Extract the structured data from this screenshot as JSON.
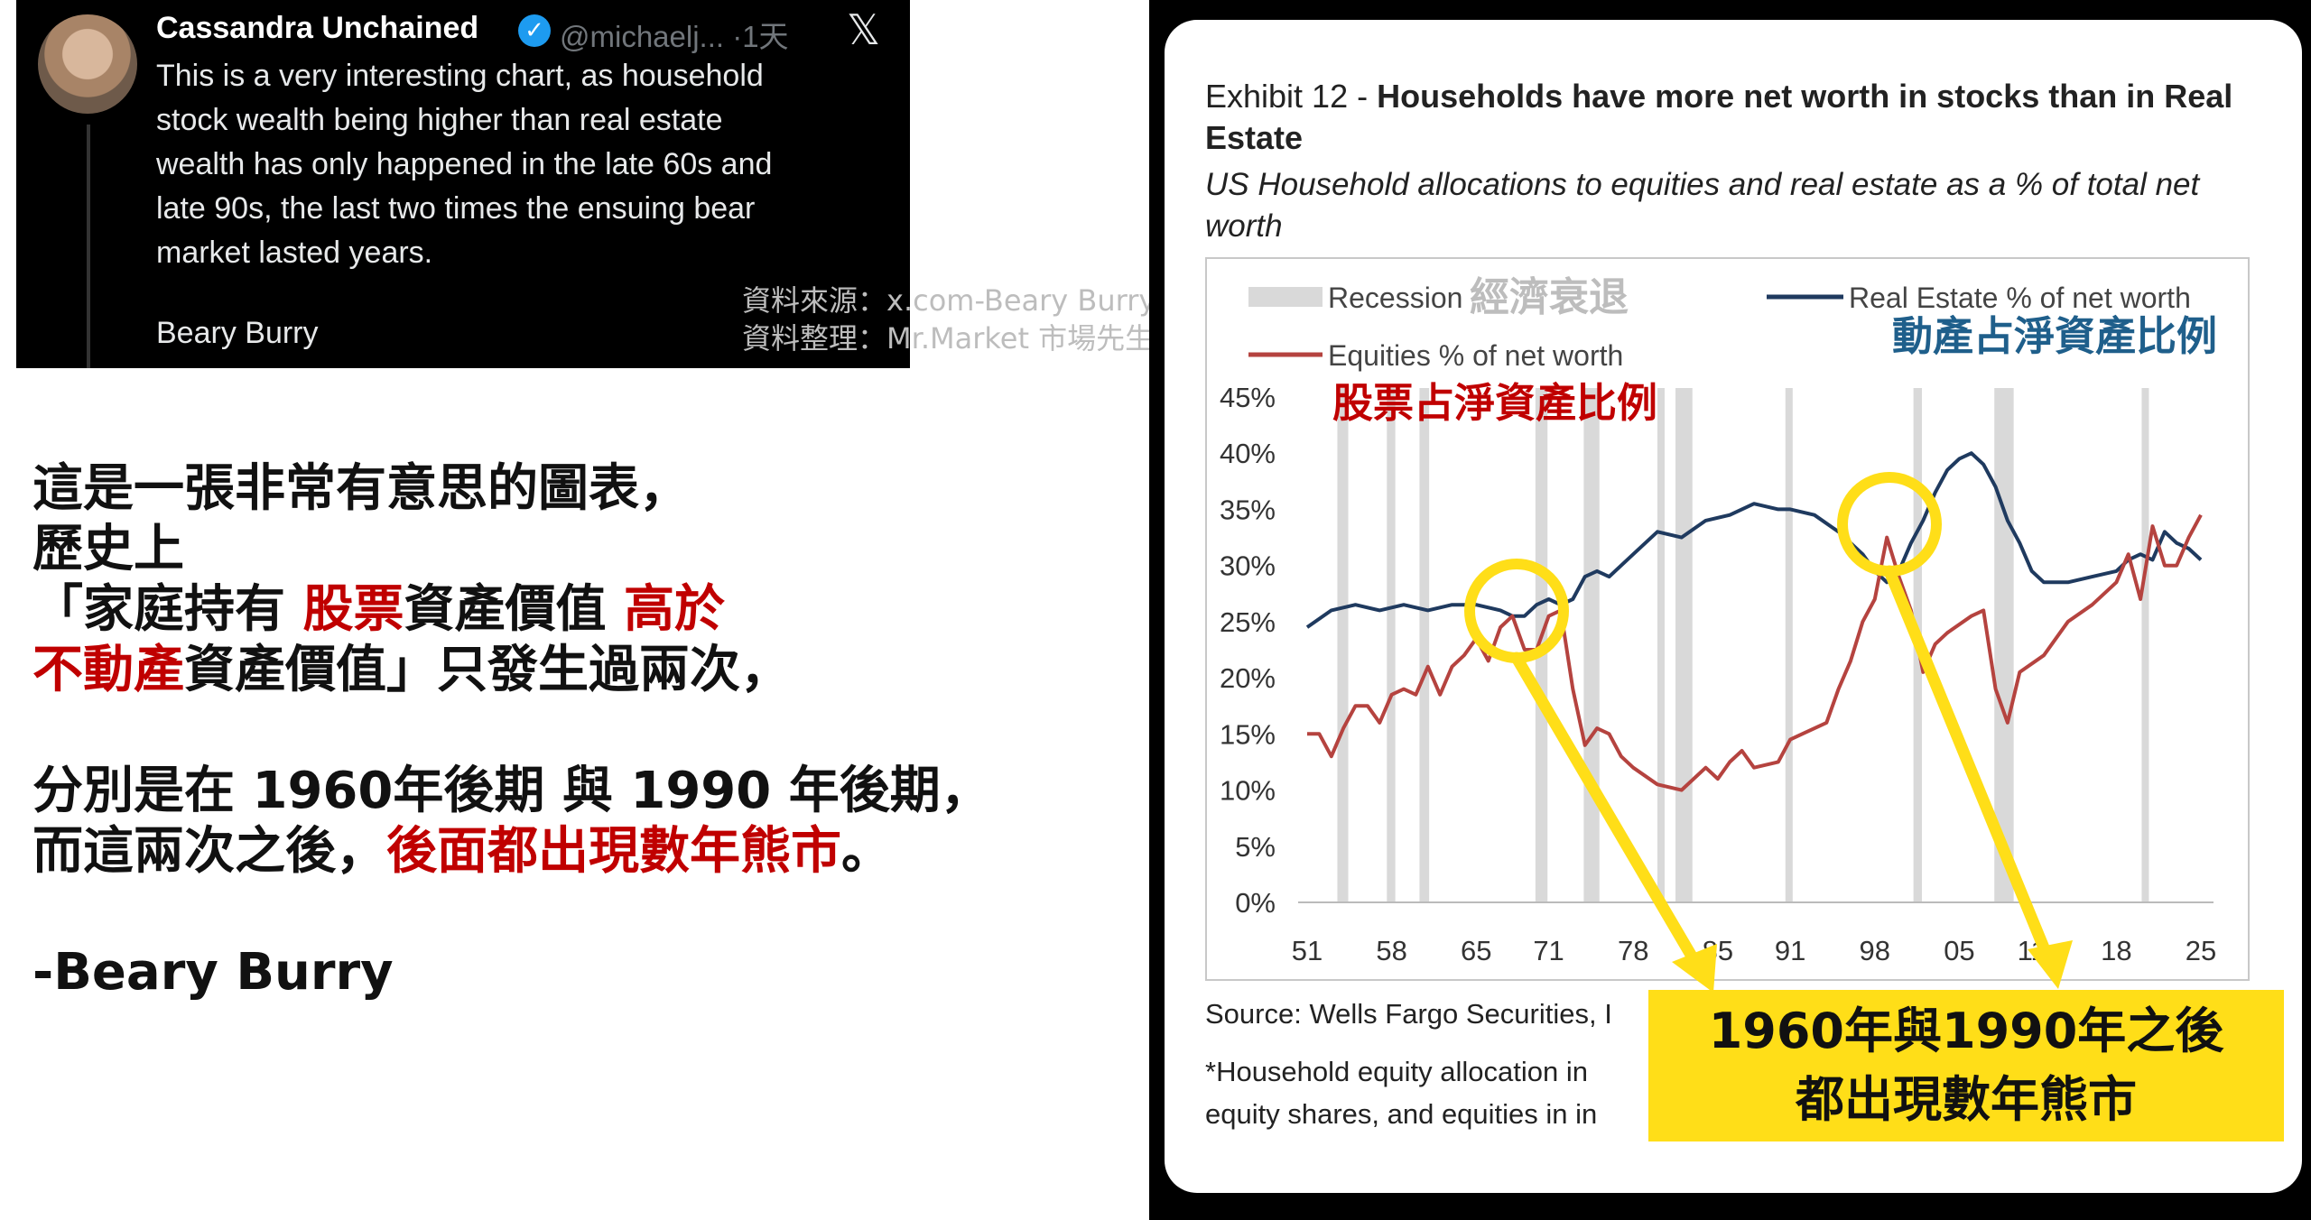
{
  "tweet": {
    "display_name": "Cassandra Unchained",
    "handle_time": "@michaelj... ·1天",
    "body": "This is a very interesting chart, as household\nstock wealth being higher than real estate\nwealth has only happened in the late 60s and\nlate 90s, the last two times the ensuing bear\nmarket lasted years.",
    "signature": "Beary Burry",
    "x_logo_glyph": "𝕏"
  },
  "credits": {
    "line1": "資料來源：x.com-Beary Burry",
    "line2": "資料整理：Mr.Market 市場先生"
  },
  "caption": {
    "l1": "這是一張非常有意思的圖表，",
    "l2": "歷史上",
    "l3a": "「家庭持有 ",
    "l3b": "股票",
    "l3c": "資產價值 ",
    "l3d": "高於",
    "l4a": " 不動產",
    "l4b": "資產價值」只發生過兩次，",
    "l5": "分別是在 1960年後期 與 1990 年後期，",
    "l6a": "而這兩次之後，",
    "l6b": "後面都出現數年熊市",
    "l6c": "。",
    "l7": "-Beary Burry"
  },
  "exhibit": {
    "title_prefix": "Exhibit 12 - ",
    "title_bold": "Households have more net worth in stocks than in Real Estate",
    "subtitle": "US Household allocations to equities and real estate as a % of total net worth",
    "source": "Source: Wells Fargo Securities, I",
    "note": "*Household equity allocation in\nequity shares, and equities in in"
  },
  "annotations": {
    "recession_zh": "經濟衰退",
    "real_estate_zh": "動產占淨資產比例",
    "equities_zh": "股票占淨資產比例",
    "callout_l1": "1960年與1990年之後",
    "callout_l2": "都出現數年熊市"
  },
  "colors": {
    "real_estate": "#1f3a5f",
    "equities": "#b5433f",
    "recession": "#d9d9d9",
    "highlight": "#ffde18",
    "annotation_red": "#c00000",
    "annotation_blue": "#1f5f8b"
  },
  "chart_data": {
    "type": "line",
    "title": "Households have more net worth in stocks than in Real Estate",
    "subtitle": "US Household allocations to equities and real estate as a % of total net worth",
    "x_tick_labels": [
      "51",
      "58",
      "65",
      "71",
      "78",
      "85",
      "91",
      "98",
      "05",
      "11",
      "18",
      "25"
    ],
    "x_tick_values": [
      1951,
      1958,
      1965,
      1971,
      1978,
      1985,
      1991,
      1998,
      2005,
      2011,
      2018,
      2025
    ],
    "xlim": [
      1951,
      2025
    ],
    "ylim": [
      0,
      45
    ],
    "y_ticks": [
      "0%",
      "5%",
      "10%",
      "15%",
      "20%",
      "25%",
      "30%",
      "35%",
      "40%",
      "45%"
    ],
    "y_tick_values": [
      0,
      5,
      10,
      15,
      20,
      25,
      30,
      35,
      40,
      45
    ],
    "legend": [
      "Recession",
      "Real Estate % of net worth",
      "Equities % of net worth"
    ],
    "legend_placement": "top",
    "grid": false,
    "recessions": [
      [
        1953.5,
        1954.4
      ],
      [
        1957.6,
        1958.3
      ],
      [
        1960.3,
        1961.1
      ],
      [
        1969.9,
        1970.9
      ],
      [
        1973.9,
        1975.2
      ],
      [
        1980.0,
        1980.6
      ],
      [
        1981.5,
        1982.9
      ],
      [
        1990.6,
        1991.2
      ],
      [
        2001.2,
        2001.9
      ],
      [
        2007.9,
        2009.5
      ],
      [
        2020.1,
        2020.4
      ]
    ],
    "series": [
      {
        "name": "Real Estate % of net worth",
        "x": [
          1951,
          1953,
          1955,
          1957,
          1959,
          1961,
          1963,
          1965,
          1967,
          1968,
          1969,
          1970,
          1971,
          1972,
          1973,
          1974,
          1975,
          1976,
          1978,
          1980,
          1982,
          1984,
          1986,
          1988,
          1990,
          1991,
          1993,
          1995,
          1997,
          1998,
          1999,
          2000,
          2001,
          2002,
          2003,
          2004,
          2005,
          2006,
          2007,
          2008,
          2009,
          2010,
          2011,
          2012,
          2013,
          2014,
          2016,
          2018,
          2019,
          2020,
          2021,
          2022,
          2023,
          2024,
          2025
        ],
        "y": [
          24.5,
          26,
          26.5,
          26,
          26.5,
          26,
          26.5,
          26.5,
          26,
          25.5,
          25.5,
          26.5,
          27,
          26.5,
          27,
          29,
          29.5,
          29,
          31,
          33,
          32.5,
          34,
          34.5,
          35.5,
          35,
          35,
          34.5,
          33,
          31,
          29.5,
          28.5,
          29.5,
          32,
          34,
          36.5,
          38.5,
          39.5,
          40,
          39,
          37,
          34,
          32,
          29.5,
          28.5,
          28.5,
          28.5,
          29,
          29.5,
          30.5,
          31,
          30.5,
          33,
          32,
          31.5,
          30.5
        ]
      },
      {
        "name": "Equities % of net worth",
        "x": [
          1951,
          1952,
          1953,
          1954,
          1955,
          1956,
          1957,
          1958,
          1959,
          1960,
          1961,
          1962,
          1963,
          1964,
          1965,
          1966,
          1967,
          1968,
          1969,
          1970,
          1971,
          1972,
          1973,
          1974,
          1975,
          1976,
          1977,
          1978,
          1980,
          1982,
          1984,
          1985,
          1986,
          1987,
          1988,
          1990,
          1991,
          1992,
          1994,
          1995,
          1996,
          1997,
          1998,
          1999,
          2000,
          2001,
          2002,
          2003,
          2004,
          2006,
          2007,
          2008,
          2009,
          2010,
          2012,
          2014,
          2016,
          2018,
          2019,
          2020,
          2021,
          2022,
          2023,
          2024,
          2025
        ],
        "y": [
          15,
          15,
          13,
          15.5,
          17.5,
          17.5,
          16,
          18.5,
          19,
          18.5,
          21,
          18.5,
          21,
          22,
          23.5,
          21.5,
          24.5,
          25.5,
          22.5,
          22.5,
          25.5,
          26,
          19,
          14,
          15.5,
          15,
          13,
          12,
          10.5,
          10,
          12,
          11,
          12.5,
          13.5,
          12,
          12.5,
          14.5,
          15,
          16,
          19,
          21.5,
          25,
          27,
          32.5,
          29,
          26,
          20.5,
          23,
          24,
          25.5,
          26,
          19,
          16,
          20.5,
          22,
          25,
          26.5,
          28.5,
          31,
          27,
          33.5,
          30,
          30,
          32.5,
          34.5
        ]
      }
    ]
  }
}
